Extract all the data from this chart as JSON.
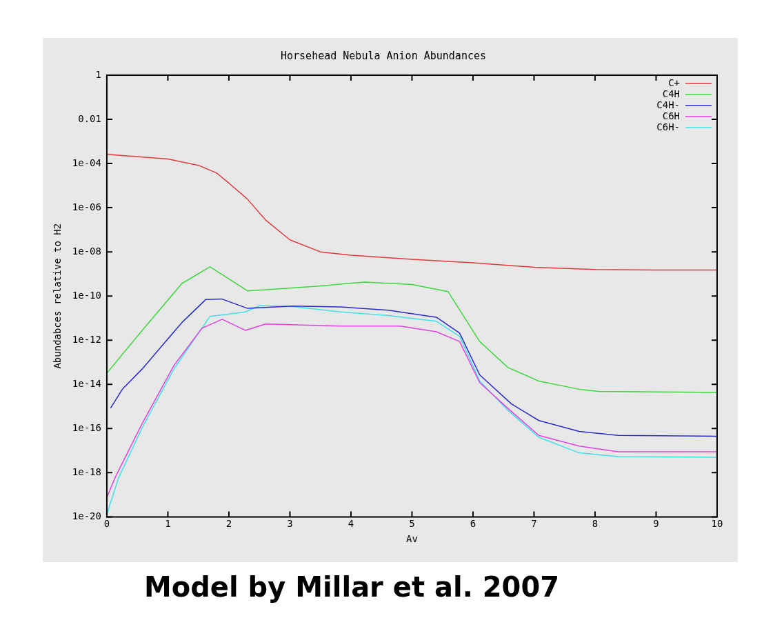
{
  "chart_data": {
    "type": "line",
    "title": "Horsehead Nebula Anion Abundances",
    "xlabel": "Av",
    "ylabel": "Abundabces relative to H2",
    "log": "y",
    "grid": false,
    "legend": "top right",
    "xlim": [
      0,
      10
    ],
    "xticks": [
      0,
      1,
      2,
      3,
      4,
      5,
      6,
      7,
      8,
      9,
      10
    ],
    "ylim": [
      1e-20,
      1
    ],
    "yticks": [
      1,
      0.01,
      {
        "value": 0.0001,
        "label": "1e-04"
      },
      {
        "value": 1e-06,
        "label": "1e-06"
      },
      {
        "value": 1e-08,
        "label": "1e-08"
      },
      {
        "value": 1e-10,
        "label": "1e-10"
      },
      {
        "value": 1e-12,
        "label": "1e-12"
      },
      {
        "value": 1e-14,
        "label": "1e-14"
      },
      {
        "value": 1e-16,
        "label": "1e-16"
      },
      {
        "value": 1e-18,
        "label": "1e-18"
      },
      {
        "value": 1e-20,
        "label": "1e-20"
      }
    ],
    "annotations": [
      "Model by Millar et al. 2007"
    ],
    "series": [
      {
        "name": "C+",
        "color": "#e03a3a",
        "x": [
          0,
          1,
          1.5,
          1.8,
          2.0,
          2.3,
          2.6,
          3.0,
          3.5,
          4,
          5,
          6,
          7,
          8,
          9,
          10
        ],
        "values": [
          0.00026,
          0.00016,
          8.3e-05,
          3.7e-05,
          1.3e-05,
          2.5e-06,
          2.8e-07,
          3.5e-08,
          1e-08,
          7.1e-09,
          4.6e-09,
          3.2e-09,
          2e-09,
          1.6e-09,
          1.5e-09,
          1.5e-09
        ]
      },
      {
        "name": "C4H",
        "color": "#3ed63e",
        "x": [
          0,
          0.58,
          1.23,
          1.69,
          2.31,
          3.44,
          4.23,
          5.0,
          5.59,
          6.11,
          6.57,
          7.08,
          7.74,
          8.06,
          10
        ],
        "values": [
          3.2e-14,
          2.8e-12,
          3.7e-10,
          2.1e-09,
          1.7e-10,
          2.8e-10,
          4.3e-10,
          3.3e-10,
          1.6e-10,
          8.7e-13,
          5.9e-14,
          1.4e-14,
          6e-15,
          4.8e-15,
          4.3e-15
        ]
      },
      {
        "name": "C4H-",
        "color": "#2a2ac8",
        "x": [
          0.06,
          0.26,
          0.58,
          1.23,
          1.62,
          1.88,
          2.3,
          3.05,
          3.83,
          4.61,
          5.4,
          5.78,
          6.11,
          6.63,
          7.08,
          7.74,
          8.38,
          10
        ],
        "values": [
          8.3e-16,
          6.3e-15,
          5e-14,
          6.3e-12,
          6.9e-11,
          7.4e-11,
          2.8e-11,
          3.5e-11,
          3.2e-11,
          2.3e-11,
          1.1e-11,
          2.1e-12,
          2.7e-14,
          1.3e-15,
          2.3e-16,
          7.4e-17,
          4.9e-17,
          4.5e-17
        ]
      },
      {
        "name": "C6H",
        "color": "#e040e0",
        "x": [
          0,
          0.13,
          0.58,
          1.1,
          1.56,
          1.89,
          2.27,
          2.6,
          3.83,
          4.81,
          5.4,
          5.78,
          6.11,
          6.57,
          7.08,
          7.74,
          8.38,
          10
        ],
        "values": [
          7.4e-20,
          5.6e-19,
          1.7e-16,
          7.2e-14,
          3.5e-12,
          8.9e-12,
          2.8e-12,
          5.4e-12,
          4.4e-12,
          4.4e-12,
          2.4e-12,
          8.7e-13,
          1.2e-14,
          8.3e-16,
          4.9e-17,
          1.6e-17,
          8.9e-18,
          8.9e-18
        ]
      },
      {
        "name": "C6H-",
        "color": "#40e0e8",
        "x": [
          0,
          0.19,
          0.58,
          1.1,
          1.69,
          2.27,
          2.51,
          3.05,
          3.83,
          4.61,
          5.4,
          5.78,
          6.11,
          6.57,
          7.08,
          7.74,
          8.38,
          10
        ],
        "values": [
          1.3e-20,
          5.6e-19,
          1.1e-16,
          5e-14,
          1.2e-11,
          1.9e-11,
          3.7e-11,
          3.3e-11,
          1.9e-11,
          1.3e-11,
          7.2e-12,
          1.5e-12,
          1.4e-14,
          6.8e-16,
          4e-17,
          7.9e-18,
          5.4e-18,
          5e-18
        ]
      }
    ]
  }
}
